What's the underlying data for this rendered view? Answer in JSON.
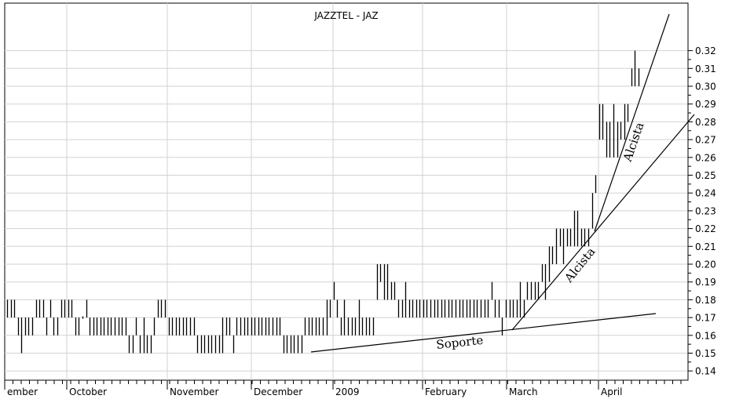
{
  "chart_data": {
    "type": "ohlc-bar",
    "title": "JAZZTEL - JAZ",
    "xlabel": "",
    "ylabel": "",
    "ylim": [
      0.135,
      0.335
    ],
    "y_ticks": [
      "0.14",
      "0.15",
      "0.16",
      "0.17",
      "0.18",
      "0.19",
      "0.20",
      "0.21",
      "0.22",
      "0.23",
      "0.24",
      "0.25",
      "0.26",
      "0.27",
      "0.28",
      "0.29",
      "0.30",
      "0.31",
      "0.32"
    ],
    "x_ticks": [
      "ember",
      "October",
      "November",
      "December",
      "2009",
      "February",
      "March",
      "April"
    ],
    "grid": true,
    "price_bars": [
      [
        0.17,
        0.18
      ],
      [
        0.17,
        0.18
      ],
      [
        0.17,
        0.18
      ],
      [
        0.16,
        0.17
      ],
      [
        0.15,
        0.17
      ],
      [
        0.16,
        0.17
      ],
      [
        0.16,
        0.17
      ],
      [
        0.16,
        0.17
      ],
      [
        0.17,
        0.18
      ],
      [
        0.17,
        0.18
      ],
      [
        0.17,
        0.18
      ],
      [
        0.16,
        0.17
      ],
      [
        0.17,
        0.18
      ],
      [
        0.16,
        0.17
      ],
      [
        0.16,
        0.17
      ],
      [
        0.17,
        0.18
      ],
      [
        0.17,
        0.18
      ],
      [
        0.17,
        0.18
      ],
      [
        0.17,
        0.18
      ],
      [
        0.16,
        0.17
      ],
      [
        0.16,
        0.17
      ],
      [
        0.17,
        0.17
      ],
      [
        0.17,
        0.18
      ],
      [
        0.16,
        0.17
      ],
      [
        0.16,
        0.17
      ],
      [
        0.16,
        0.17
      ],
      [
        0.16,
        0.17
      ],
      [
        0.16,
        0.17
      ],
      [
        0.16,
        0.17
      ],
      [
        0.16,
        0.17
      ],
      [
        0.16,
        0.17
      ],
      [
        0.16,
        0.17
      ],
      [
        0.16,
        0.17
      ],
      [
        0.16,
        0.17
      ],
      [
        0.15,
        0.16
      ],
      [
        0.15,
        0.16
      ],
      [
        0.16,
        0.17
      ],
      [
        0.15,
        0.16
      ],
      [
        0.15,
        0.17
      ],
      [
        0.15,
        0.16
      ],
      [
        0.15,
        0.16
      ],
      [
        0.16,
        0.17
      ],
      [
        0.17,
        0.18
      ],
      [
        0.17,
        0.18
      ],
      [
        0.17,
        0.18
      ],
      [
        0.16,
        0.17
      ],
      [
        0.16,
        0.17
      ],
      [
        0.16,
        0.17
      ],
      [
        0.16,
        0.17
      ],
      [
        0.16,
        0.17
      ],
      [
        0.16,
        0.17
      ],
      [
        0.16,
        0.17
      ],
      [
        0.16,
        0.17
      ],
      [
        0.15,
        0.16
      ],
      [
        0.15,
        0.16
      ],
      [
        0.15,
        0.16
      ],
      [
        0.15,
        0.16
      ],
      [
        0.15,
        0.16
      ],
      [
        0.15,
        0.16
      ],
      [
        0.15,
        0.16
      ],
      [
        0.15,
        0.17
      ],
      [
        0.16,
        0.17
      ],
      [
        0.16,
        0.17
      ],
      [
        0.15,
        0.16
      ],
      [
        0.16,
        0.17
      ],
      [
        0.16,
        0.17
      ],
      [
        0.16,
        0.17
      ],
      [
        0.16,
        0.17
      ],
      [
        0.16,
        0.17
      ],
      [
        0.16,
        0.17
      ],
      [
        0.16,
        0.17
      ],
      [
        0.16,
        0.17
      ],
      [
        0.16,
        0.17
      ],
      [
        0.16,
        0.17
      ],
      [
        0.16,
        0.17
      ],
      [
        0.16,
        0.17
      ],
      [
        0.16,
        0.17
      ],
      [
        0.15,
        0.16
      ],
      [
        0.15,
        0.16
      ],
      [
        0.15,
        0.16
      ],
      [
        0.15,
        0.16
      ],
      [
        0.15,
        0.16
      ],
      [
        0.15,
        0.16
      ],
      [
        0.16,
        0.17
      ],
      [
        0.16,
        0.17
      ],
      [
        0.16,
        0.17
      ],
      [
        0.16,
        0.17
      ],
      [
        0.16,
        0.17
      ],
      [
        0.16,
        0.17
      ],
      [
        0.16,
        0.18
      ],
      [
        0.17,
        0.18
      ],
      [
        0.18,
        0.19
      ],
      [
        0.17,
        0.18
      ],
      [
        0.16,
        0.17
      ],
      [
        0.16,
        0.18
      ],
      [
        0.16,
        0.17
      ],
      [
        0.16,
        0.17
      ],
      [
        0.16,
        0.17
      ],
      [
        0.16,
        0.18
      ],
      [
        0.16,
        0.17
      ],
      [
        0.16,
        0.17
      ],
      [
        0.16,
        0.17
      ],
      [
        0.16,
        0.17
      ],
      [
        0.18,
        0.2
      ],
      [
        0.19,
        0.2
      ],
      [
        0.18,
        0.2
      ],
      [
        0.18,
        0.2
      ],
      [
        0.18,
        0.19
      ],
      [
        0.18,
        0.19
      ],
      [
        0.17,
        0.18
      ],
      [
        0.17,
        0.18
      ],
      [
        0.17,
        0.19
      ],
      [
        0.17,
        0.18
      ],
      [
        0.17,
        0.18
      ],
      [
        0.17,
        0.18
      ],
      [
        0.17,
        0.18
      ],
      [
        0.17,
        0.18
      ],
      [
        0.17,
        0.18
      ],
      [
        0.17,
        0.18
      ],
      [
        0.17,
        0.18
      ],
      [
        0.17,
        0.18
      ],
      [
        0.17,
        0.18
      ],
      [
        0.17,
        0.18
      ],
      [
        0.17,
        0.18
      ],
      [
        0.17,
        0.18
      ],
      [
        0.17,
        0.18
      ],
      [
        0.17,
        0.18
      ],
      [
        0.17,
        0.18
      ],
      [
        0.17,
        0.18
      ],
      [
        0.17,
        0.18
      ],
      [
        0.17,
        0.18
      ],
      [
        0.17,
        0.18
      ],
      [
        0.17,
        0.18
      ],
      [
        0.17,
        0.18
      ],
      [
        0.17,
        0.18
      ],
      [
        0.18,
        0.19
      ],
      [
        0.17,
        0.18
      ],
      [
        0.17,
        0.18
      ],
      [
        0.16,
        0.17
      ],
      [
        0.17,
        0.18
      ],
      [
        0.17,
        0.18
      ],
      [
        0.17,
        0.18
      ],
      [
        0.17,
        0.18
      ],
      [
        0.17,
        0.19
      ],
      [
        0.17,
        0.18
      ],
      [
        0.18,
        0.19
      ],
      [
        0.18,
        0.19
      ],
      [
        0.18,
        0.19
      ],
      [
        0.18,
        0.19
      ],
      [
        0.19,
        0.2
      ],
      [
        0.18,
        0.2
      ],
      [
        0.19,
        0.21
      ],
      [
        0.2,
        0.21
      ],
      [
        0.2,
        0.22
      ],
      [
        0.21,
        0.22
      ],
      [
        0.2,
        0.22
      ],
      [
        0.21,
        0.22
      ],
      [
        0.21,
        0.22
      ],
      [
        0.21,
        0.23
      ],
      [
        0.21,
        0.23
      ],
      [
        0.21,
        0.22
      ],
      [
        0.21,
        0.22
      ],
      [
        0.21,
        0.22
      ],
      [
        0.22,
        0.24
      ],
      [
        0.24,
        0.25
      ],
      [
        0.27,
        0.29
      ],
      [
        0.27,
        0.29
      ],
      [
        0.26,
        0.28
      ],
      [
        0.26,
        0.28
      ],
      [
        0.26,
        0.29
      ],
      [
        0.26,
        0.28
      ],
      [
        0.27,
        0.28
      ],
      [
        0.27,
        0.29
      ],
      [
        0.28,
        0.29
      ],
      [
        0.3,
        0.31
      ],
      [
        0.3,
        0.32
      ],
      [
        0.3,
        0.31
      ]
    ],
    "annotations": [
      {
        "label": "Soporte",
        "kind": "trendline"
      },
      {
        "label": "Alcista",
        "kind": "trendline"
      },
      {
        "label": "Alcista",
        "kind": "trendline"
      }
    ]
  }
}
